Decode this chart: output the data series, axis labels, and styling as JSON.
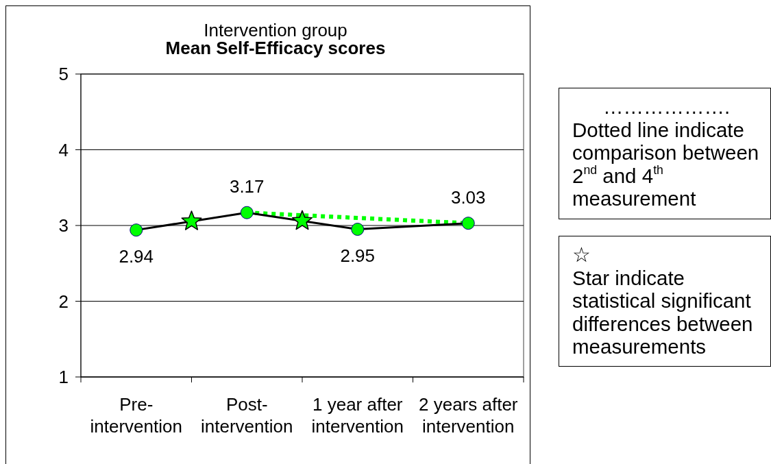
{
  "chart_data": {
    "type": "line",
    "title": "Intervention group",
    "subtitle": "Mean Self-Efficacy scores",
    "categories": [
      "Pre-intervention",
      "Post-intervention",
      "1 year after intervention",
      "2 years after intervention"
    ],
    "series": [
      {
        "color": "#000000",
        "colors": [
          "#00ff00",
          "#00ff00",
          "#00ff00",
          "#00ff00"
        ],
        "values": [
          2.94,
          3.17,
          2.95,
          3.03
        ],
        "value_labels": [
          "2.94",
          "3.17",
          "2.95",
          "3.03"
        ]
      },
      {
        "color": "#00ff00",
        "x": [
          "Post-intervention",
          "2 years after intervention"
        ],
        "values": [
          3.17,
          3.03
        ],
        "line_style": "dotted",
        "marker": "none"
      }
    ],
    "ylim": [
      1,
      5
    ],
    "yticks": [
      1,
      2,
      3,
      4,
      5
    ],
    "grid": "y",
    "marker": "circle",
    "line_style": "solid",
    "annotations": [
      "……………….\nDotted line indicate comparison between 2$^{nd}$ and 4$^{th}$ measurement",
      "☆\nStar indicate statistical significant differences between measurements"
    ]
  }
}
